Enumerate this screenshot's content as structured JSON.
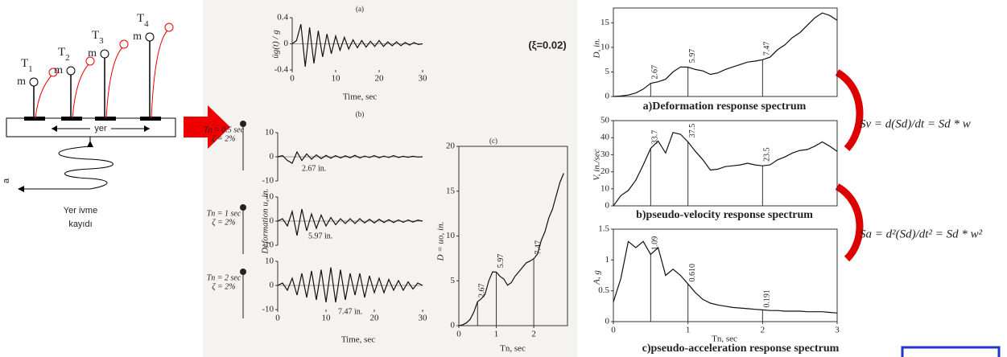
{
  "diagram": {
    "towers": [
      {
        "name": "T",
        "sub": "1",
        "mass": "m"
      },
      {
        "name": "T",
        "sub": "2",
        "mass": "m"
      },
      {
        "name": "T",
        "sub": "3",
        "mass": "m"
      },
      {
        "name": "T",
        "sub": "4",
        "mass": "m"
      }
    ],
    "ground": "yer",
    "accel": "a",
    "caption": [
      "Yer ivme",
      "kayıdı"
    ]
  },
  "damping": "(ξ=0.02)",
  "charts": [
    {
      "type": "line",
      "label": "(a)",
      "next_label": "(b)",
      "ylabel": "üg(t) / g",
      "xlabel": "Time, sec",
      "x": [
        0,
        1,
        2,
        3,
        4,
        5,
        6,
        7,
        8,
        9,
        10,
        11,
        12,
        13,
        14,
        15,
        16,
        17,
        18,
        19,
        20,
        21,
        22,
        23,
        24,
        25,
        26,
        27,
        28,
        29,
        30
      ],
      "values": [
        0,
        0.05,
        0.3,
        -0.35,
        0.25,
        -0.3,
        0.2,
        -0.2,
        0.15,
        -0.15,
        0.12,
        -0.1,
        0.1,
        -0.08,
        0.06,
        -0.06,
        0.05,
        -0.05,
        0.04,
        -0.04,
        0.05,
        -0.04,
        0.03,
        -0.03,
        0.03,
        -0.03,
        0.02,
        -0.02,
        0.02,
        -0.01,
        0
      ],
      "xlim": [
        0,
        30
      ],
      "ylim": [
        -0.4,
        0.4
      ],
      "xticks": [
        0,
        10,
        20,
        30
      ],
      "yticks": [
        0.4,
        0,
        -0.4
      ]
    },
    {
      "type": "line",
      "period": "Tn = 0.5 sec",
      "zeta": "ζ = 2%",
      "peak": "2.67 in.",
      "x": [
        0,
        1,
        2,
        3,
        4,
        5,
        6,
        7,
        8,
        9,
        10,
        11,
        12,
        13,
        14,
        15,
        16,
        17,
        18,
        19,
        20,
        21,
        22,
        23,
        24,
        25,
        26,
        27,
        28,
        29,
        30
      ],
      "values": [
        0,
        0.5,
        -1.5,
        -2.67,
        2,
        -1.5,
        1.2,
        -1,
        0.8,
        -0.8,
        0.6,
        -0.6,
        0.5,
        -0.5,
        0.4,
        -0.4,
        0.6,
        -0.5,
        0.3,
        -0.3,
        0.5,
        -0.4,
        0.3,
        -0.3,
        0.5,
        -0.3,
        0.2,
        -0.2,
        0.2,
        -0.1,
        0
      ],
      "xlim": [
        0,
        30
      ],
      "ylim": [
        -10,
        10
      ],
      "yticks": [
        10,
        0,
        -10
      ]
    },
    {
      "type": "line",
      "period": "Tn = 1 sec",
      "zeta": "ζ = 2%",
      "peak": "5.97 in.",
      "ylabel": "Deformation u, in.",
      "x": [
        0,
        1,
        2,
        3,
        4,
        5,
        6,
        7,
        8,
        9,
        10,
        11,
        12,
        13,
        14,
        15,
        16,
        17,
        18,
        19,
        20,
        21,
        22,
        23,
        24,
        25,
        26,
        27,
        28,
        29,
        30
      ],
      "values": [
        0,
        1,
        -2,
        4,
        -5.97,
        5,
        -4,
        3,
        -3,
        2.5,
        -2,
        1.5,
        -1.5,
        1,
        -1,
        1,
        -1,
        1,
        -0.8,
        0.8,
        -0.8,
        0.8,
        -0.6,
        0.6,
        -0.6,
        0.5,
        -0.5,
        0.5,
        -0.4,
        0.4,
        0
      ],
      "xlim": [
        0,
        30
      ],
      "ylim": [
        -10,
        10
      ],
      "yticks": [
        10,
        0,
        -10
      ]
    },
    {
      "type": "line",
      "period": "Tn = 2 sec",
      "zeta": "ζ = 2%",
      "peak": "7.47 in.",
      "xlabel": "Time, sec",
      "x": [
        0,
        1,
        2,
        3,
        4,
        5,
        6,
        7,
        8,
        9,
        10,
        11,
        12,
        13,
        14,
        15,
        16,
        17,
        18,
        19,
        20,
        21,
        22,
        23,
        24,
        25,
        26,
        27,
        28,
        29,
        30
      ],
      "values": [
        0,
        1,
        -2,
        3,
        -4,
        5,
        -5,
        6,
        -6,
        6.5,
        -7,
        7.47,
        -7,
        6.5,
        -6,
        5,
        -4,
        5,
        -5,
        4,
        -3,
        3,
        -3,
        2.5,
        -2,
        2,
        -2,
        1.5,
        -1.5,
        1,
        0
      ],
      "xlim": [
        0,
        30
      ],
      "ylim": [
        -10,
        10
      ],
      "xticks": [
        0,
        10,
        20,
        30
      ],
      "yticks": [
        10,
        0,
        -10
      ]
    },
    {
      "type": "line",
      "label": "(c)",
      "ylabel": "D = uo, in.",
      "xlabel": "Tn, sec",
      "x": [
        0,
        0.1,
        0.2,
        0.3,
        0.4,
        0.5,
        0.6,
        0.7,
        0.8,
        0.9,
        1,
        1.1,
        1.2,
        1.3,
        1.4,
        1.5,
        1.6,
        1.7,
        1.8,
        1.9,
        2,
        2.1,
        2.2,
        2.3,
        2.4,
        2.5,
        2.6,
        2.7,
        2.8
      ],
      "values": [
        0,
        0.1,
        0.3,
        0.7,
        1.5,
        2.67,
        3,
        3.5,
        5,
        6,
        5.97,
        5.5,
        5.2,
        4.5,
        4.8,
        5.5,
        6,
        6.5,
        7,
        7.2,
        7.47,
        8,
        9.5,
        10.5,
        12,
        13,
        14.5,
        16,
        17
      ],
      "annotations": [
        {
          "x": 0.5,
          "label": "2.67"
        },
        {
          "x": 1,
          "label": "5.97"
        },
        {
          "x": 2,
          "label": "7.47"
        }
      ],
      "xlim": [
        0,
        2.9
      ],
      "ylim": [
        0,
        20
      ],
      "xticks": [
        0,
        1,
        2
      ],
      "yticks": [
        0,
        5,
        10,
        15,
        20
      ]
    },
    {
      "type": "line",
      "ylabel": "D, in.",
      "caption": "a)Deformation response spectrum",
      "x": [
        0,
        0.1,
        0.2,
        0.3,
        0.4,
        0.5,
        0.6,
        0.7,
        0.8,
        0.9,
        1,
        1.1,
        1.2,
        1.3,
        1.4,
        1.5,
        1.6,
        1.7,
        1.8,
        1.9,
        2,
        2.1,
        2.2,
        2.3,
        2.4,
        2.5,
        2.6,
        2.7,
        2.8,
        2.9,
        3
      ],
      "values": [
        0,
        0.1,
        0.3,
        0.7,
        1.5,
        2.67,
        3,
        3.5,
        5,
        6,
        5.97,
        5.5,
        5.2,
        4.5,
        4.8,
        5.5,
        6,
        6.5,
        7,
        7.2,
        7.47,
        8,
        9.5,
        10.5,
        12,
        13,
        14.5,
        16,
        17,
        16.5,
        15.5
      ],
      "annotations": [
        {
          "x": 0.5,
          "label": "2.67"
        },
        {
          "x": 1,
          "label": "5.97"
        },
        {
          "x": 2,
          "label": "7.47"
        }
      ],
      "xlim": [
        0,
        3
      ],
      "ylim": [
        0,
        18
      ],
      "yticks": [
        0,
        5,
        10,
        15
      ]
    },
    {
      "type": "line",
      "ylabel": "V, in./sec",
      "caption": "b)pseudo-velocity response spectrum",
      "x": [
        0,
        0.1,
        0.2,
        0.3,
        0.4,
        0.5,
        0.6,
        0.7,
        0.8,
        0.9,
        1,
        1.1,
        1.2,
        1.3,
        1.4,
        1.5,
        1.6,
        1.7,
        1.8,
        1.9,
        2,
        2.1,
        2.2,
        2.3,
        2.4,
        2.5,
        2.6,
        2.7,
        2.8,
        2.9,
        3
      ],
      "values": [
        0,
        6,
        9,
        15,
        24,
        33.7,
        38,
        31,
        43,
        42,
        37.5,
        32,
        27,
        21,
        21.5,
        23,
        23.5,
        24,
        25,
        24,
        23.5,
        24,
        27,
        28.7,
        31,
        32.5,
        33,
        35,
        37.5,
        35,
        32
      ],
      "annotations": [
        {
          "x": 0.5,
          "label": "33.7"
        },
        {
          "x": 1,
          "label": "37.5"
        },
        {
          "x": 2,
          "label": "23.5"
        }
      ],
      "xlim": [
        0,
        3
      ],
      "ylim": [
        0,
        50
      ],
      "yticks": [
        0,
        10,
        20,
        30,
        40,
        50
      ]
    },
    {
      "type": "line",
      "ylabel": "A, g",
      "xlabel": "Tn, sec",
      "caption": "c)pseudo-acceleration response spectrum",
      "x": [
        0,
        0.1,
        0.2,
        0.3,
        0.4,
        0.5,
        0.6,
        0.7,
        0.8,
        0.9,
        1,
        1.1,
        1.2,
        1.3,
        1.4,
        1.5,
        1.6,
        1.7,
        1.8,
        1.9,
        2,
        2.1,
        2.2,
        2.3,
        2.4,
        2.5,
        2.6,
        2.7,
        2.8,
        2.9,
        3
      ],
      "values": [
        0.32,
        0.7,
        1.3,
        1.2,
        1.3,
        1.09,
        1.2,
        0.75,
        0.85,
        0.75,
        0.61,
        0.47,
        0.36,
        0.3,
        0.27,
        0.25,
        0.23,
        0.22,
        0.21,
        0.2,
        0.191,
        0.18,
        0.18,
        0.17,
        0.17,
        0.17,
        0.16,
        0.16,
        0.16,
        0.15,
        0.14
      ],
      "annotations": [
        {
          "x": 0.5,
          "label": "1.09"
        },
        {
          "x": 1,
          "label": "0.610"
        },
        {
          "x": 2,
          "label": "0.191"
        }
      ],
      "xlim": [
        0,
        3
      ],
      "ylim": [
        0,
        1.5
      ],
      "xticks": [
        0,
        1,
        2,
        3
      ],
      "yticks": [
        0,
        0.5,
        1,
        1.5
      ]
    }
  ],
  "equations": [
    "Sv = d(Sd)/dt = Sd * w",
    "Sa = d²(Sd)/dt² = Sd * w²"
  ]
}
